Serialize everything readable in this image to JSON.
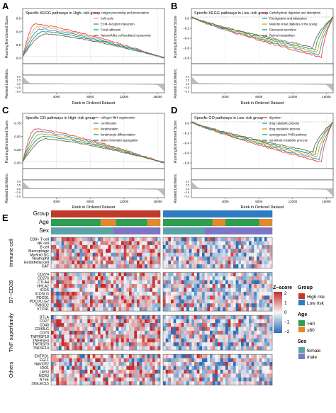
{
  "panels": {
    "A": {
      "letter": "A",
      "title": "Specific KEGG pathways in High−risk group",
      "y_label_top": "Running Enrichment Score",
      "y_label_bottom": "Ranked List Metric",
      "x_label": "Rank in Ordered Dataset",
      "x_ticks": [
        "4000",
        "8000",
        "12000",
        "16000"
      ],
      "y_ticks_top": [
        "0.6",
        "0.4",
        "0.2",
        "0.0"
      ],
      "y_ticks_bottom": [
        "5.0",
        "2.5",
        "0.0",
        "−2.5",
        "−5.0"
      ],
      "legend": [
        {
          "label": "Antigen processing and presentation",
          "color": "#e64b35"
        },
        {
          "label": "Cell cycle",
          "color": "#f39b7f"
        },
        {
          "label": "ECM−receptor interaction",
          "color": "#3c8dbc"
        },
        {
          "label": "Focal adhesion",
          "color": "#00a087"
        },
        {
          "label": "Natural killer cell mediated cytotoxicity",
          "color": "#7e6148"
        }
      ]
    },
    "B": {
      "letter": "B",
      "title": "Specific KEGG pathways in Low−risk group",
      "y_label_top": "Running Enrichment Score",
      "y_label_bottom": "Ranked List Metric",
      "x_label": "Rank in Ordered Dataset",
      "x_ticks": [
        "4000",
        "8000",
        "12000",
        "16000"
      ],
      "y_ticks_top": [
        "0.0",
        "−0.2",
        "−0.4",
        "−0.6",
        "−0.8"
      ],
      "y_ticks_bottom": [
        "5.0",
        "2.5",
        "0.0",
        "−2.5",
        "−5.0"
      ],
      "legend": [
        {
          "label": "Carbohydrate digestion and absorption",
          "color": "#e64b35"
        },
        {
          "label": "Fat digestion and absorption",
          "color": "#3c8dbc"
        },
        {
          "label": "Maturity onset diabetes of the young",
          "color": "#e69f00"
        },
        {
          "label": "Pancreatic secretion",
          "color": "#00a087"
        },
        {
          "label": "Retinol metabolism",
          "color": "#7e6148"
        }
      ]
    },
    "C": {
      "letter": "C",
      "title": "Specific GO pathways in High−risk group",
      "y_label_top": "Running Enrichment Score",
      "y_label_bottom": "Ranked List Metric",
      "x_label": "Rank in Ordered Dataset",
      "x_ticks": [
        "4000",
        "8000",
        "12000",
        "16000"
      ],
      "y_ticks_top": [
        "0.75",
        "0.50",
        "0.25",
        "0.00"
      ],
      "y_ticks_bottom": [
        "5.0",
        "2.5",
        "0.0",
        "−2.5",
        "−5.0"
      ],
      "legend": [
        {
          "label": "collagen fibril organization",
          "color": "#e64b35"
        },
        {
          "label": "cornification",
          "color": "#3c8dbc"
        },
        {
          "label": "keratinization",
          "color": "#e69f00"
        },
        {
          "label": "keratinocyte differentiation",
          "color": "#00a087"
        },
        {
          "label": "sister chromatid segregation",
          "color": "#7e6148"
        }
      ]
    },
    "D": {
      "letter": "D",
      "title": "Specific GO pathways in Low−risk group",
      "y_label_top": "Running Enrichment Score",
      "y_label_bottom": "Ranked List Metric",
      "x_label": "Rank in Ordered Dataset",
      "x_ticks": [
        "4000",
        "8000",
        "12000",
        "16000"
      ],
      "y_ticks_top": [
        "0.0",
        "−0.2",
        "−0.4",
        "−0.6",
        "−0.8"
      ],
      "y_ticks_bottom": [
        "5.0",
        "2.5",
        "0.0",
        "−2.5",
        "−5.0"
      ],
      "legend": [
        {
          "label": "digestion",
          "color": "#e64b35"
        },
        {
          "label": "drug catabolic process",
          "color": "#3c8dbc"
        },
        {
          "label": "drug metabolic process",
          "color": "#e69f00"
        },
        {
          "label": "epoxygenase P450 pathway",
          "color": "#00a087"
        },
        {
          "label": "xenobiotic metabolic process",
          "color": "#7e6148"
        }
      ]
    }
  },
  "heatmap": {
    "letter": "E",
    "annotation_labels": [
      "Group",
      "Age",
      "Sex"
    ],
    "groups": [
      {
        "name": "Immune cell",
        "genes": [
          "CD8+ T cell",
          "NK cell",
          "B cell",
          "Macrophage",
          "Myeloid DC",
          "Neutrophil",
          "Endothelial cell",
          "CAF"
        ]
      },
      {
        "name": "B7−CD28",
        "genes": [
          "CD274",
          "CD276",
          "CTLA4",
          "HHLA2",
          "ICOS",
          "ICOSLG",
          "PDCD1",
          "PDCD1LG2",
          "TMIGD2",
          "VTCN1"
        ]
      },
      {
        "name": "TNF superfamily",
        "genes": [
          "BTLA",
          "CD27",
          "CD40",
          "CD40LG",
          "CD70",
          "TNFRSF18",
          "TNFRSF4",
          "TNFRSF9",
          "TNFSF14"
        ]
      },
      {
        "name": "Others",
        "genes": [
          "ENTPD1",
          "FGL1",
          "HAVCR2",
          "IDO1",
          "LAG3",
          "NCR3",
          "NT5E",
          "SIGLEC15"
        ]
      }
    ],
    "legend": {
      "zscore_title": "Z−score",
      "zscore_ticks": [
        "2",
        "1",
        "0",
        "−1",
        "−2"
      ],
      "zscore_colors": [
        "#c62a2a",
        "#f7f7f7",
        "#2d6db5"
      ],
      "group_title": "Group",
      "group_items": [
        {
          "label": "High risk",
          "color": "#c0392b"
        },
        {
          "label": "Low risk",
          "color": "#2e7cc1"
        }
      ],
      "age_title": "Age",
      "age_items": [
        {
          "label": ">60",
          "color": "#2e9e4f"
        },
        {
          "label": "≤60",
          "color": "#e08a2c"
        }
      ],
      "sex_title": "Sex",
      "sex_items": [
        {
          "label": "female",
          "color": "#5ba3a8"
        },
        {
          "label": "male",
          "color": "#7e76c4"
        }
      ]
    }
  }
}
